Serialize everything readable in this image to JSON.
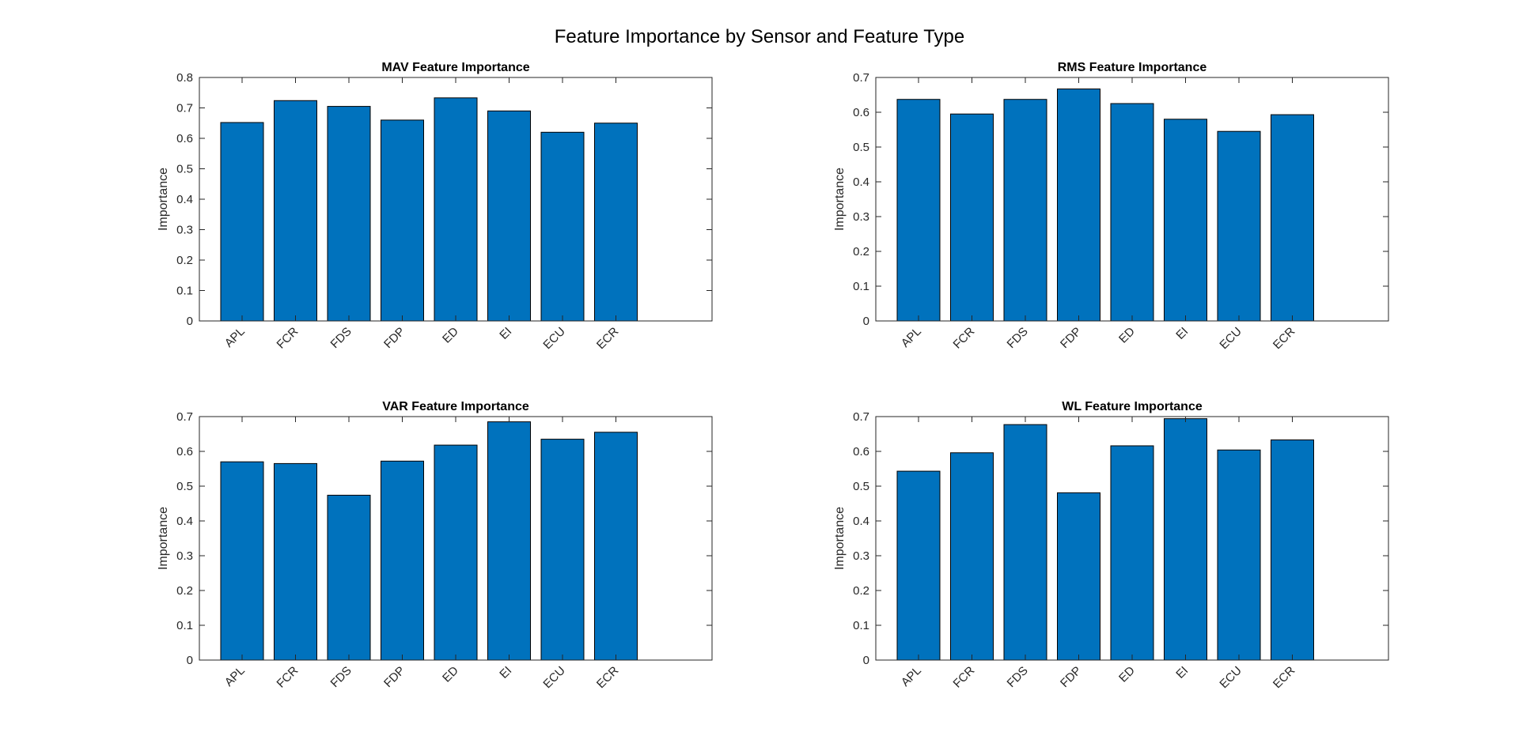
{
  "figure": {
    "title": "Feature Importance by Sensor and Feature Type"
  },
  "colors": {
    "bar_fill": "#0072BD",
    "bar_stroke": "#000000",
    "axis": "#262626"
  },
  "chart_data": [
    {
      "type": "bar",
      "title": "MAV Feature Importance",
      "xlabel": "",
      "ylabel": "Importance",
      "categories": [
        "APL",
        "FCR",
        "FDS",
        "FDP",
        "ED",
        "EI",
        "ECU",
        "ECR"
      ],
      "values": [
        0.652,
        0.724,
        0.705,
        0.66,
        0.733,
        0.69,
        0.62,
        0.65
      ],
      "ylim": [
        0,
        0.8
      ],
      "yticks": [
        "0",
        "0.1",
        "0.2",
        "0.3",
        "0.4",
        "0.5",
        "0.6",
        "0.7",
        "0.8"
      ],
      "grid": false,
      "legend": "none"
    },
    {
      "type": "bar",
      "title": "RMS Feature Importance",
      "xlabel": "",
      "ylabel": "Importance",
      "categories": [
        "APL",
        "FCR",
        "FDS",
        "FDP",
        "ED",
        "EI",
        "ECU",
        "ECR"
      ],
      "values": [
        0.637,
        0.595,
        0.637,
        0.667,
        0.625,
        0.58,
        0.545,
        0.593
      ],
      "ylim": [
        0,
        0.7
      ],
      "yticks": [
        "0",
        "0.1",
        "0.2",
        "0.3",
        "0.4",
        "0.5",
        "0.6",
        "0.7"
      ],
      "grid": false,
      "legend": "none"
    },
    {
      "type": "bar",
      "title": "VAR Feature Importance",
      "xlabel": "",
      "ylabel": "Importance",
      "categories": [
        "APL",
        "FCR",
        "FDS",
        "FDP",
        "ED",
        "EI",
        "ECU",
        "ECR"
      ],
      "values": [
        0.57,
        0.565,
        0.474,
        0.572,
        0.618,
        0.685,
        0.635,
        0.655
      ],
      "ylim": [
        0,
        0.7
      ],
      "yticks": [
        "0",
        "0.1",
        "0.2",
        "0.3",
        "0.4",
        "0.5",
        "0.6",
        "0.7"
      ],
      "grid": false,
      "legend": "none"
    },
    {
      "type": "bar",
      "title": "WL Feature Importance",
      "xlabel": "",
      "ylabel": "Importance",
      "categories": [
        "APL",
        "FCR",
        "FDS",
        "FDP",
        "ED",
        "EI",
        "ECU",
        "ECR"
      ],
      "values": [
        0.543,
        0.596,
        0.677,
        0.481,
        0.616,
        0.694,
        0.604,
        0.633
      ],
      "ylim": [
        0,
        0.7
      ],
      "yticks": [
        "0",
        "0.1",
        "0.2",
        "0.3",
        "0.4",
        "0.5",
        "0.6",
        "0.7"
      ],
      "grid": false,
      "legend": "none"
    }
  ]
}
